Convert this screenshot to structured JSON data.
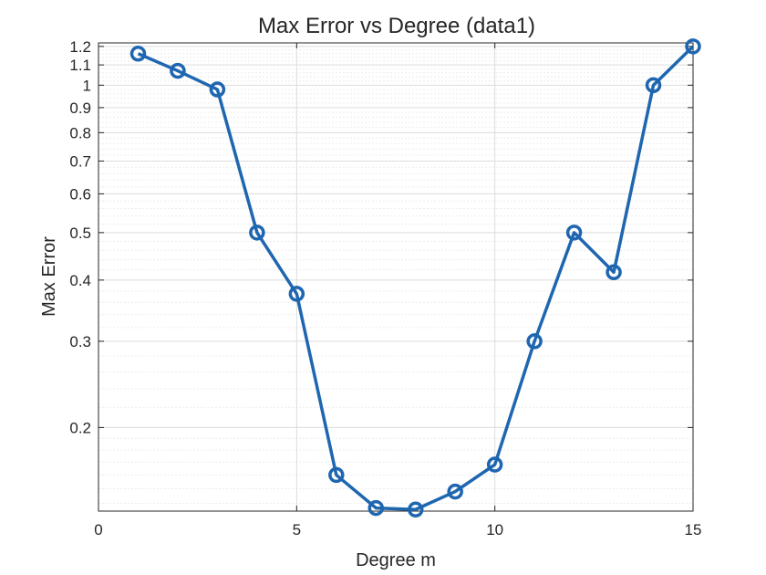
{
  "chart_data": {
    "type": "line",
    "title": "Max Error vs Degree (data1)",
    "xlabel": "Degree m",
    "ylabel": "Max Error",
    "xlim": [
      0,
      15
    ],
    "ylim": [
      0.135,
      1.22
    ],
    "yscale": "log",
    "grid": true,
    "minor_grid": true,
    "xticks": [
      0,
      5,
      10,
      15
    ],
    "xtick_labels": [
      "0",
      "5",
      "10",
      "15"
    ],
    "yticks": [
      0.2,
      0.3,
      0.4,
      0.5,
      0.6,
      0.7,
      0.8,
      0.9,
      1,
      1.1,
      1.2
    ],
    "ytick_labels": [
      "0.2",
      "0.3",
      "0.4",
      "0.5",
      "0.6",
      "0.7",
      "0.8",
      "0.9",
      "1",
      "1.1",
      "1.2"
    ],
    "x": [
      1,
      2,
      3,
      4,
      5,
      6,
      7,
      8,
      9,
      10,
      11,
      12,
      13,
      14,
      15
    ],
    "series": [
      {
        "values": [
          1.16,
          1.07,
          0.98,
          0.5,
          0.375,
          0.16,
          0.137,
          0.136,
          0.148,
          0.168,
          0.3,
          0.5,
          0.415,
          1.0,
          1.2
        ],
        "color": "#1f66b0",
        "marker": "circle"
      }
    ]
  }
}
